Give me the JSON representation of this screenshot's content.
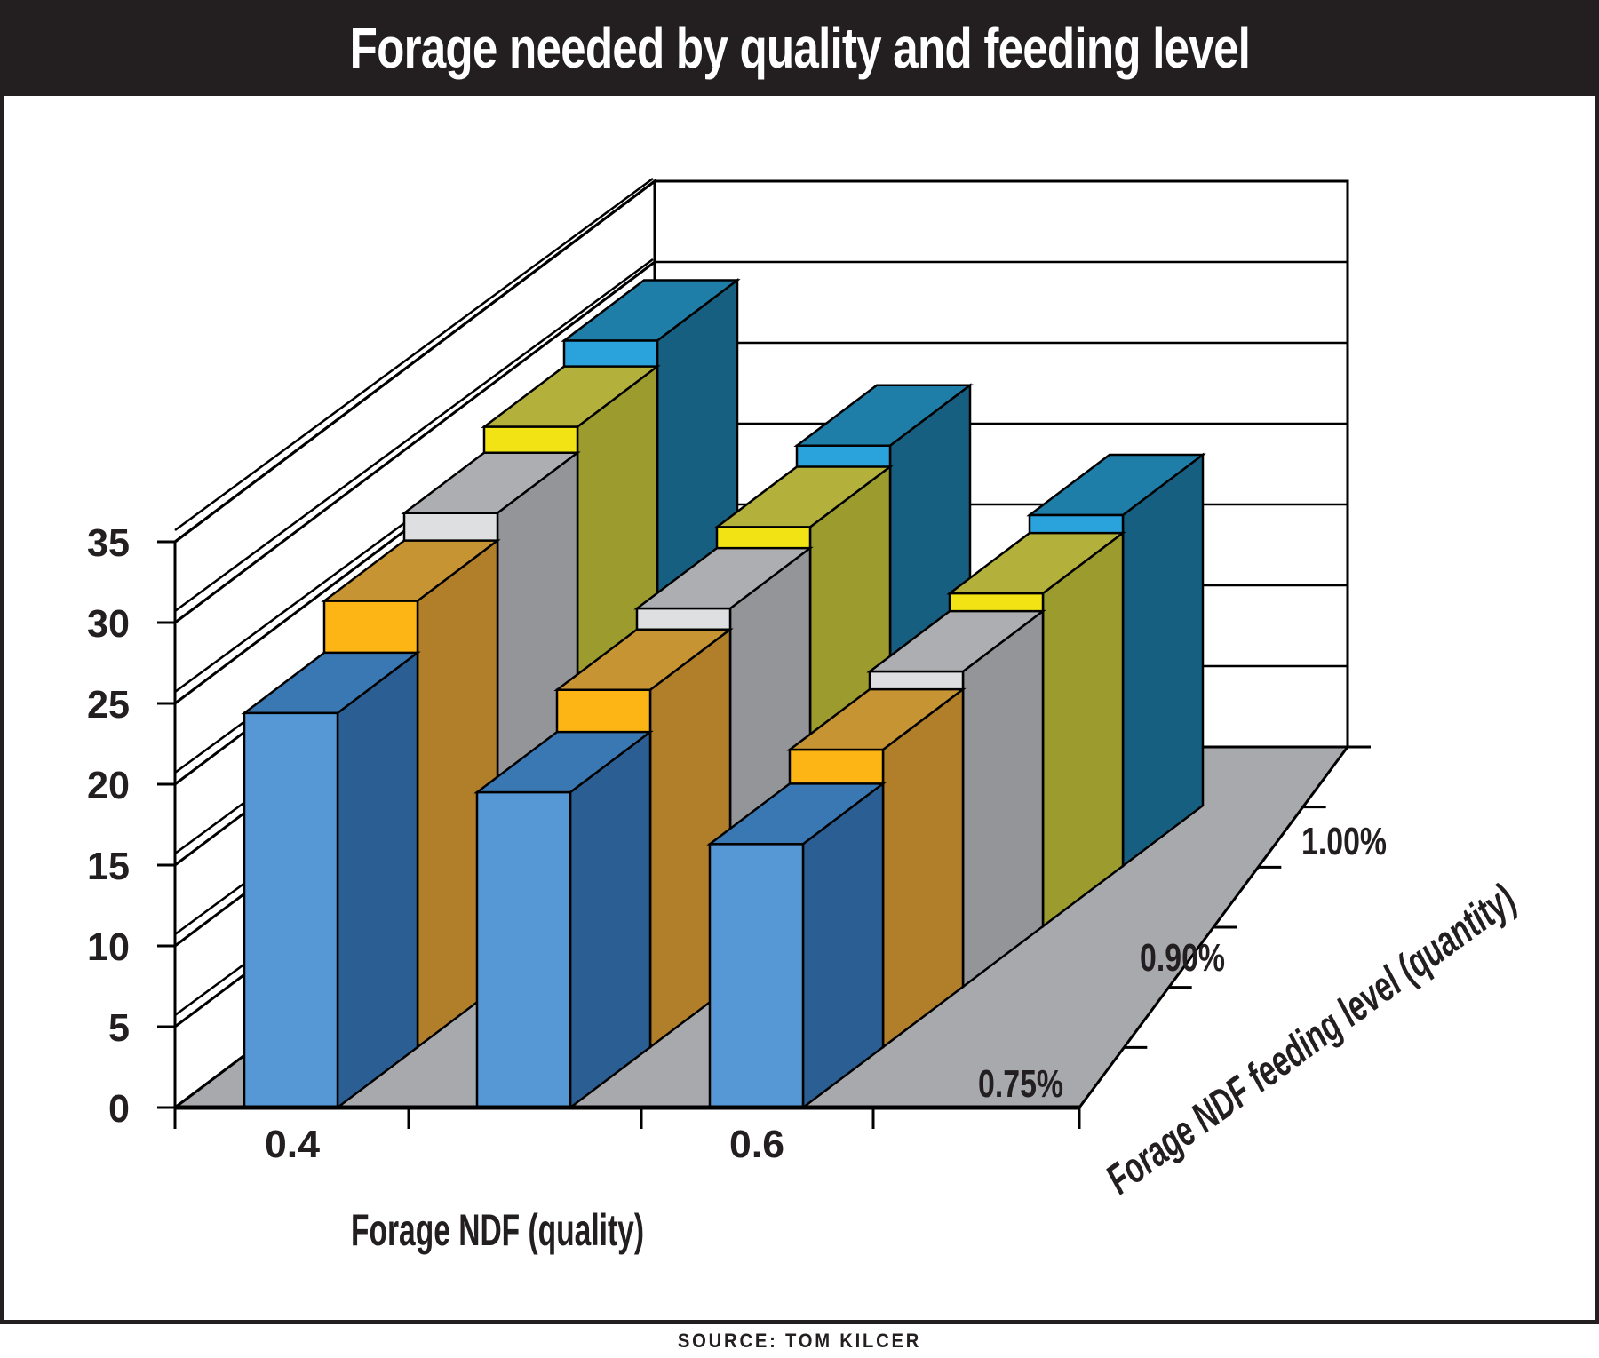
{
  "header": {
    "title": "Forage needed by quality and feeding level"
  },
  "source": {
    "text": "SOURCE: TOM KILCER"
  },
  "chart_data": {
    "type": "bar",
    "projection": "3d-perspective-columns",
    "title": "Forage needed by quality and feeding level",
    "xlabel": "Forage NDF (quality)",
    "zlabel": "Forage NDF feeding level (quantity)",
    "ylabel": "",
    "categories": [
      "0.4",
      "",
      "0.6"
    ],
    "x_tick_labels_visible": [
      "0.4",
      "0.6"
    ],
    "depth_labels_visible": [
      "0.75%",
      "0.90%",
      "1.00%"
    ],
    "ylim": [
      0,
      35
    ],
    "y_ticks": [
      0,
      5,
      10,
      15,
      20,
      25,
      30,
      35
    ],
    "grid": "on",
    "legend": "none",
    "series": [
      {
        "label": "0.75%",
        "front": "#5598D5",
        "top": "#3A78B3",
        "side": "#2B5F94",
        "values": [
          24.4,
          19.5,
          16.3
        ]
      },
      {
        "label": "",
        "front": "#FCB515",
        "top": "#C79433",
        "side": "#B17F2A",
        "values": [
          27.6,
          22.1,
          18.4
        ]
      },
      {
        "label": "0.90%",
        "front": "#DEDFE0",
        "top": "#ACAEB1",
        "side": "#939598",
        "values": [
          29.3,
          23.4,
          19.5
        ]
      },
      {
        "label": "",
        "front": "#F2E414",
        "top": "#B3B03C",
        "side": "#9C9C2E",
        "values": [
          30.9,
          24.7,
          20.6
        ]
      },
      {
        "label": "1.00%",
        "front": "#2AA3DC",
        "top": "#1E7EA7",
        "side": "#175F80",
        "values": [
          32.5,
          26.0,
          21.7
        ]
      }
    ],
    "floor_color": "#A7A9AC",
    "wall_color": "#FFFFFF",
    "line_color": "#000000",
    "header_bg": "#231F20"
  }
}
